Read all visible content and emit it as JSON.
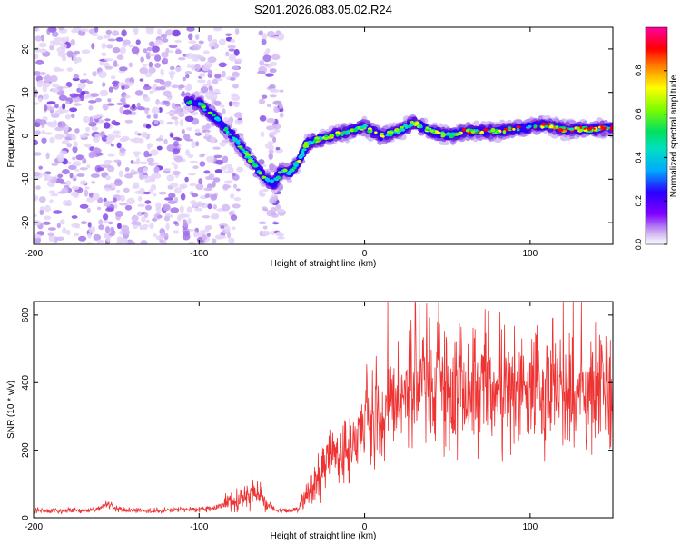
{
  "figure_title": "S201.2026.083.05.02.R24",
  "chart_data": [
    {
      "type": "heatmap",
      "title": "S201.2026.083.05.02.R24",
      "xlabel": "Height of straight line (km)",
      "ylabel": "Frequency (Hz)",
      "xlim": [
        -200,
        150
      ],
      "ylim": [
        -25,
        25
      ],
      "x_ticks": [
        -200,
        -100,
        0,
        100
      ],
      "y_ticks": [
        -20,
        -10,
        0,
        10,
        20
      ],
      "colorbar": {
        "label": "Normalized spectral amplitude",
        "range": [
          0,
          1
        ],
        "ticks": [
          0.0,
          0.2,
          0.4,
          0.6,
          0.8
        ],
        "tick_labels": [
          "0.0",
          "0.2",
          "0.4",
          "0.6",
          "0.8"
        ],
        "colormap": [
          "#ffffff",
          "#8a2be2",
          "#2a00ff",
          "#00c8ff",
          "#00e060",
          "#7cfc00",
          "#ffff00",
          "#ff8000",
          "#ff0000",
          "#ff00a0"
        ]
      },
      "ridge": {
        "x": [
          -108,
          -100,
          -90,
          -80,
          -70,
          -60,
          -55,
          -50,
          -45,
          -40,
          -35,
          -30,
          -20,
          -10,
          0,
          10,
          20,
          30,
          40,
          50,
          60,
          70,
          80,
          90,
          100,
          110,
          120,
          130,
          140,
          150
        ],
        "y": [
          8,
          7.5,
          4,
          0,
          -5,
          -10,
          -11,
          -8,
          -8.5,
          -6,
          -2,
          -1,
          0,
          1,
          2,
          0,
          1,
          3,
          1,
          0,
          1,
          1,
          1,
          1.5,
          2,
          2.5,
          1.5,
          1.5,
          1.5,
          2
        ]
      }
    },
    {
      "type": "line",
      "xlabel": "Height of straight line (km)",
      "ylabel": "SNR (10 * v/v)",
      "xlim": [
        -200,
        150
      ],
      "ylim": [
        0,
        640
      ],
      "x_ticks": [
        -200,
        -100,
        0,
        100
      ],
      "y_ticks": [
        0,
        200,
        400,
        600
      ],
      "series": [
        {
          "name": "SNR",
          "color": "#ee3333",
          "x": [
            -200,
            -190,
            -180,
            -170,
            -160,
            -155,
            -150,
            -140,
            -130,
            -120,
            -110,
            -100,
            -90,
            -80,
            -75,
            -70,
            -65,
            -60,
            -55,
            -50,
            -45,
            -40,
            -35,
            -30,
            -25,
            -20,
            -15,
            -10,
            -5,
            0,
            5,
            10,
            15,
            20,
            25,
            30,
            33,
            35,
            40,
            45,
            50,
            55,
            60,
            65,
            70,
            75,
            80,
            85,
            90,
            95,
            100,
            105,
            110,
            115,
            120,
            125,
            130,
            135,
            140,
            145,
            150
          ],
          "y": [
            22,
            20,
            22,
            20,
            25,
            40,
            25,
            22,
            20,
            22,
            24,
            25,
            28,
            50,
            60,
            70,
            80,
            45,
            25,
            20,
            22,
            25,
            70,
            110,
            150,
            200,
            170,
            210,
            230,
            260,
            300,
            290,
            310,
            320,
            380,
            390,
            520,
            420,
            380,
            400,
            380,
            390,
            360,
            380,
            390,
            410,
            360,
            380,
            370,
            390,
            380,
            380,
            360,
            375,
            360,
            380,
            360,
            350,
            365,
            375,
            350
          ]
        }
      ]
    }
  ]
}
